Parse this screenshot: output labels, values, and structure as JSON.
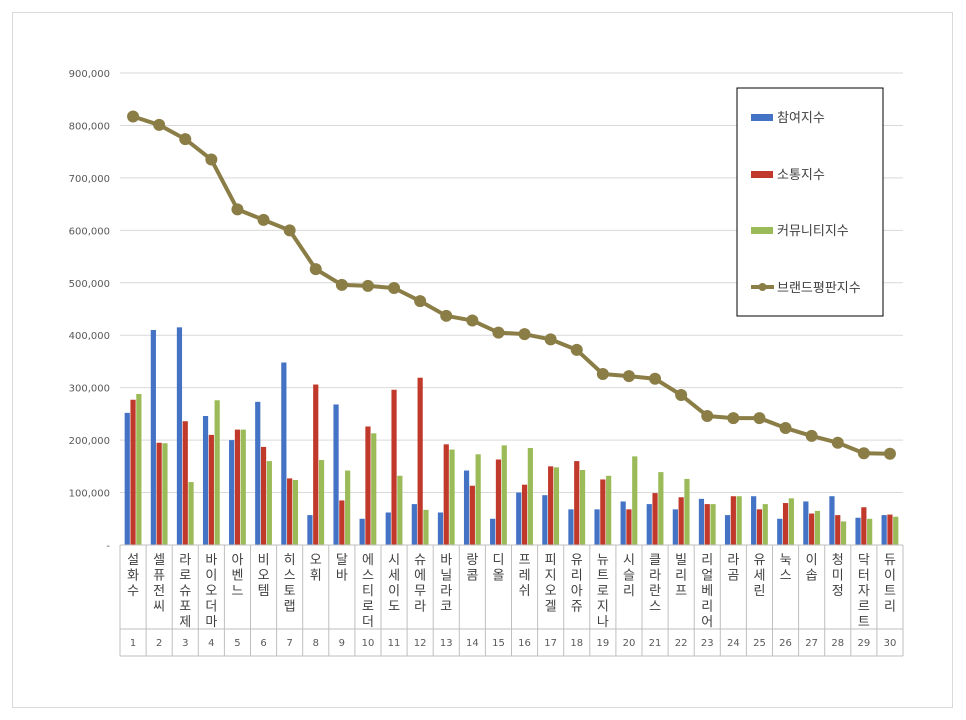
{
  "chart_data": {
    "type": "bar",
    "title": "",
    "xlabel": "",
    "ylabel": "",
    "ylim": [
      0,
      900000
    ],
    "y_ticks": [
      0,
      100000,
      200000,
      300000,
      400000,
      500000,
      600000,
      700000,
      800000,
      900000
    ],
    "y_tick_labels": [
      "-",
      "100,000",
      "200,000",
      "300,000",
      "400,000",
      "500,000",
      "600,000",
      "700,000",
      "800,000",
      "900,000"
    ],
    "grid": true,
    "legend_position": "top-right",
    "categories": [
      "설화수",
      "셀퓨전씨",
      "라로슈포제",
      "바이오더마",
      "아벤느",
      "비오템",
      "히스토랩",
      "오휘",
      "달바",
      "에스티로더",
      "시세이도",
      "슈에무라",
      "바닐라코",
      "랑콤",
      "디올",
      "프레쉬",
      "피지오겔",
      "유리아쥬",
      "뉴트로지나",
      "시슬리",
      "클라란스",
      "빌리프",
      "리얼베리어",
      "라곰",
      "유세린",
      "눅스",
      "이솝",
      "청미정",
      "닥터자르트",
      "듀이트리"
    ],
    "ranks": [
      "1",
      "2",
      "3",
      "4",
      "5",
      "6",
      "7",
      "8",
      "9",
      "10",
      "11",
      "12",
      "13",
      "14",
      "15",
      "16",
      "17",
      "18",
      "19",
      "20",
      "21",
      "22",
      "23",
      "24",
      "25",
      "26",
      "27",
      "28",
      "29",
      "30"
    ],
    "series": [
      {
        "name": "참여지수",
        "type": "bar",
        "color": "#4472c4",
        "values": [
          252000,
          410000,
          415000,
          246000,
          200000,
          273000,
          348000,
          57000,
          268000,
          50000,
          62000,
          78000,
          62000,
          142000,
          50000,
          100000,
          95000,
          68000,
          68000,
          83000,
          78000,
          68000,
          88000,
          57000,
          93000,
          50000,
          83000,
          93000,
          52000,
          57000
        ]
      },
      {
        "name": "소통지수",
        "type": "bar",
        "color": "#c0392b",
        "values": [
          277000,
          195000,
          236000,
          210000,
          220000,
          187000,
          127000,
          306000,
          85000,
          226000,
          296000,
          319000,
          192000,
          113000,
          163000,
          115000,
          150000,
          160000,
          125000,
          68000,
          99000,
          91000,
          78000,
          93000,
          68000,
          80000,
          60000,
          57000,
          72000,
          58000
        ]
      },
      {
        "name": "커뮤니티지수",
        "type": "bar",
        "color": "#9bbb59",
        "values": [
          288000,
          194000,
          120000,
          276000,
          220000,
          160000,
          124000,
          162000,
          142000,
          213000,
          132000,
          67000,
          182000,
          173000,
          190000,
          185000,
          148000,
          143000,
          132000,
          169000,
          139000,
          126000,
          78000,
          93000,
          78000,
          89000,
          65000,
          45000,
          50000,
          54000
        ]
      },
      {
        "name": "브랜드평판지수",
        "type": "line",
        "color": "#8b7d46",
        "values": [
          817000,
          801000,
          774000,
          735000,
          640000,
          620000,
          600000,
          526000,
          496000,
          494000,
          490000,
          465000,
          437000,
          428000,
          405000,
          402000,
          392000,
          372000,
          326000,
          322000,
          317000,
          286000,
          246000,
          242000,
          242000,
          223000,
          208000,
          195000,
          175000,
          174000
        ]
      }
    ]
  }
}
